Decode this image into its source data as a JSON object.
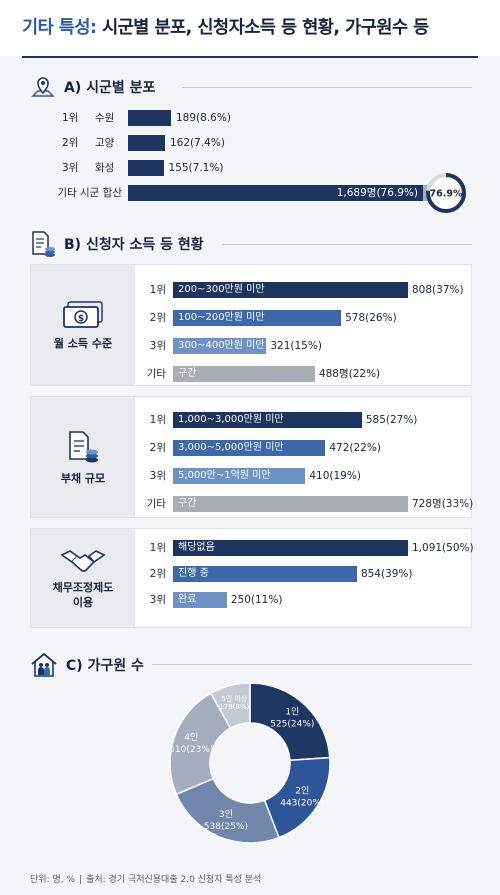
{
  "header": {
    "title_accent": "기타 특성:",
    "title_rest": "시군별 분포, 신청자소득 등 현황, 가구원수 등"
  },
  "colors": {
    "navy": "#1d3461",
    "mid_blue": "#3f68a8",
    "light_blue": "#6f92c4",
    "gray": "#a9adb6",
    "donut_1": "#1f3562",
    "donut_2": "#2f5599",
    "donut_3": "#7186aa",
    "donut_4": "#a3adbf",
    "donut_5": "#c4c9d3"
  },
  "section_a": {
    "title": "A) 시군별 분포",
    "icon": "map-pin-icon",
    "rows": [
      {
        "rank": "1위",
        "name": "수원",
        "value": 189,
        "label": "189(8.6%)",
        "pct": 8.6
      },
      {
        "rank": "2위",
        "name": "고양",
        "value": 162,
        "label": "162(7.4%)",
        "pct": 7.4
      },
      {
        "rank": "3위",
        "name": "화성",
        "value": 155,
        "label": "155(7.1%)",
        "pct": 7.1
      },
      {
        "rank": "",
        "name": "기타 시군 합산",
        "value": 1689,
        "label": "1,689명(76.9%)",
        "pct": 76.9
      }
    ],
    "ring_label": "76.9%",
    "ring_pct": 76.9
  },
  "section_b": {
    "title": "B) 신청자 소득 등 현황",
    "icon": "document-coins-icon",
    "groups": [
      {
        "label": "월 소득 수준",
        "icon": "money-bill-icon",
        "rows": [
          {
            "rank": "1위",
            "band": "200~300만원 미만",
            "value": 808,
            "label": "808(37%)"
          },
          {
            "rank": "2위",
            "band": "100~200만원 미만",
            "value": 578,
            "label": "578(26%)"
          },
          {
            "rank": "3위",
            "band": "300~400만원 미만",
            "value": 321,
            "label": "321(15%)"
          },
          {
            "rank": "기타",
            "band": "구간",
            "value": 488,
            "label": "488명(22%)"
          }
        ]
      },
      {
        "label": "부채 규모",
        "icon": "debt-document-icon",
        "rows": [
          {
            "rank": "1위",
            "band": "1,000~3,000만원 미만",
            "value": 585,
            "label": "585(27%)"
          },
          {
            "rank": "2위",
            "band": "3,000~5,000만원 미만",
            "value": 472,
            "label": "472(22%)"
          },
          {
            "rank": "3위",
            "band": "5,000만~1억원 미만",
            "value": 410,
            "label": "410(19%)"
          },
          {
            "rank": "기타",
            "band": "구간",
            "value": 728,
            "label": "728명(33%)"
          }
        ]
      },
      {
        "label": "채무조정제도\n이용",
        "icon": "handshake-icon",
        "rows": [
          {
            "rank": "1위",
            "band": "해당없음",
            "value": 1091,
            "label": "1,091(50%)"
          },
          {
            "rank": "2위",
            "band": "진행 중",
            "value": 854,
            "label": "854(39%)"
          },
          {
            "rank": "3위",
            "band": "완료",
            "value": 250,
            "label": "250(11%)"
          }
        ]
      }
    ]
  },
  "section_c": {
    "title": "C) 가구원 수",
    "icon": "house-family-icon"
  },
  "chart_data": {
    "type": "pie",
    "style": "donut",
    "categories": [
      "1인",
      "2인",
      "3인",
      "4인",
      "5인 이상"
    ],
    "values": [
      525,
      443,
      538,
      510,
      179
    ],
    "labels": [
      "525(24%)",
      "443(20%)",
      "538(25%)",
      "510(23%)",
      "179(8%)"
    ],
    "percents": [
      24,
      20,
      25,
      23,
      8
    ]
  },
  "footer": {
    "unit": "단위: 명, %",
    "source": "출처: 경기 극저신용대출 2.0 신청자 특성 분석"
  }
}
